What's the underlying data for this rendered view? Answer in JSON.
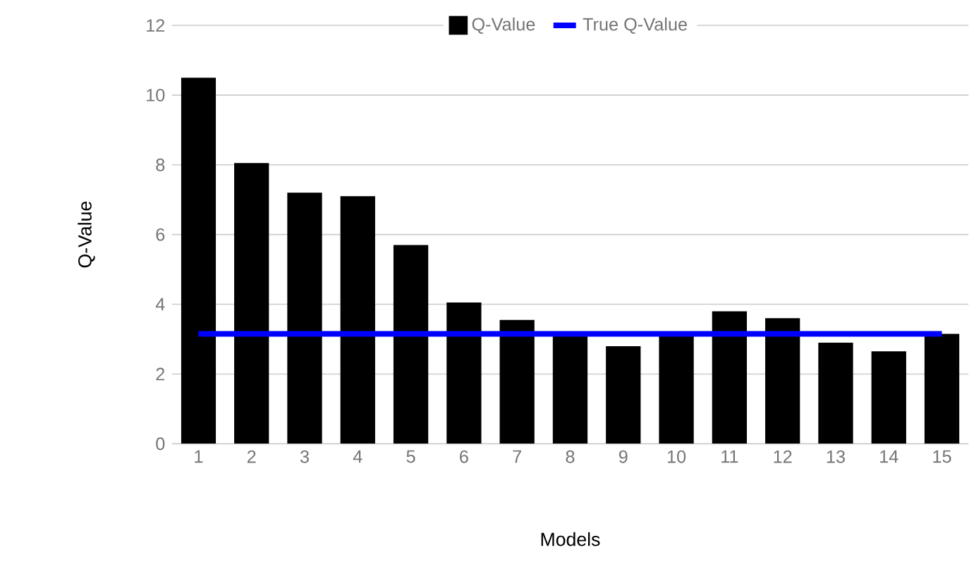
{
  "chart_data": {
    "type": "bar",
    "xlabel": "Models",
    "ylabel": "Q-Value",
    "categories": [
      "1",
      "2",
      "3",
      "4",
      "5",
      "6",
      "7",
      "8",
      "9",
      "10",
      "11",
      "12",
      "13",
      "14",
      "15"
    ],
    "series": [
      {
        "name": "Q-Value",
        "color": "#000000",
        "values": [
          10.5,
          8.05,
          7.2,
          7.1,
          5.7,
          4.05,
          3.55,
          3.15,
          2.8,
          3.1,
          3.8,
          3.6,
          2.9,
          2.65,
          3.15
        ]
      },
      {
        "name": "True Q-Value",
        "type": "line",
        "color": "#0000ff",
        "values": [
          3.15,
          3.15,
          3.15,
          3.15,
          3.15,
          3.15,
          3.15,
          3.15,
          3.15,
          3.15,
          3.15,
          3.15,
          3.15,
          3.15,
          3.15
        ]
      }
    ],
    "ylim": [
      0,
      12
    ],
    "yticks": [
      0,
      2,
      4,
      6,
      8,
      10,
      12
    ],
    "grid": "y",
    "legend": "top"
  }
}
